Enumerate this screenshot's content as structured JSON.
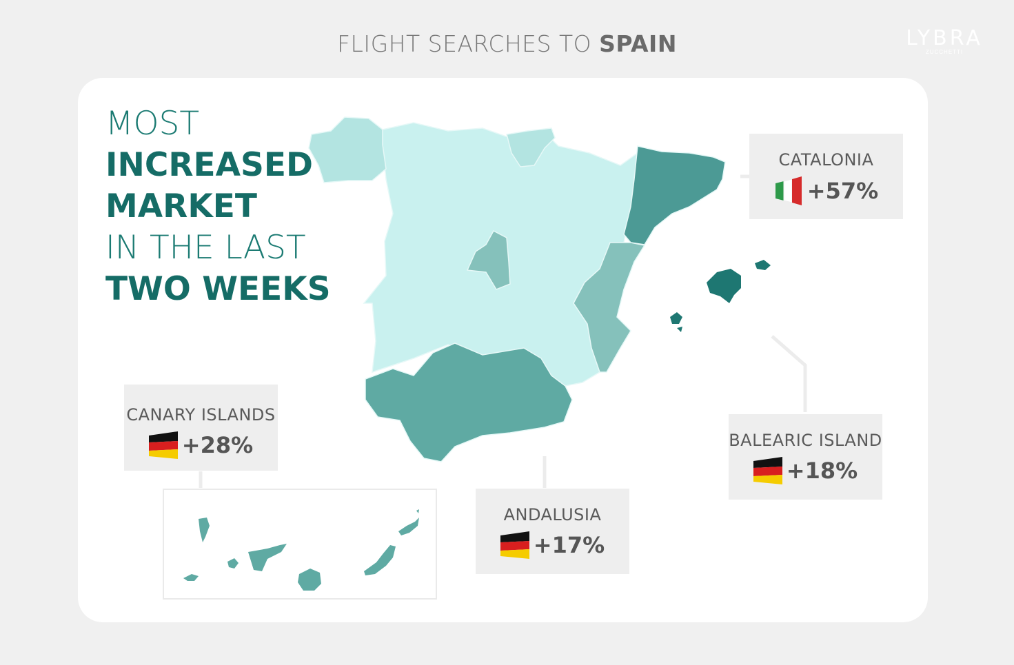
{
  "header": {
    "title_prefix": "FLIGHT SEARCHES TO ",
    "title_bold": "SPAIN"
  },
  "logo": {
    "word": "LYBRA",
    "sub": "ZUCCHETTI"
  },
  "headline": {
    "line1": "MOST",
    "line2": "INCREASED",
    "line3": "MARKET",
    "line4": "IN THE LAST",
    "line5": "TWO WEEKS"
  },
  "regions": {
    "catalonia": {
      "name": "CATALONIA",
      "flag": "italy-flag-icon",
      "change": "+57%",
      "change_value": 57
    },
    "canary_islands": {
      "name": "CANARY ISLANDS",
      "flag": "germany-flag-icon",
      "change": "+28%",
      "change_value": 28
    },
    "balearic_island": {
      "name": "BALEARIC ISLAND",
      "flag": "germany-flag-icon",
      "change": "+18%",
      "change_value": 18
    },
    "andalusia": {
      "name": "ANDALUSIA",
      "flag": "germany-flag-icon",
      "change": "+17%",
      "change_value": 17
    }
  },
  "colors": {
    "background": "#f0f0f0",
    "card": "#ffffff",
    "headline": "#1a7a72",
    "region_lightest": "#c9f1ef",
    "region_light": "#b3e4e1",
    "region_mid": "#85c1bb",
    "region_strong": "#5faaa3",
    "region_darker": "#4c9a95",
    "region_darkest": "#1e7772"
  }
}
